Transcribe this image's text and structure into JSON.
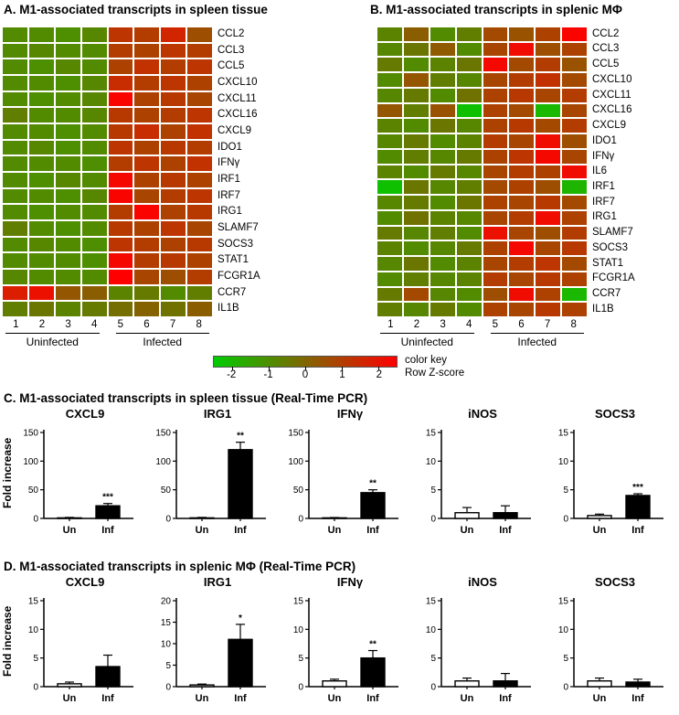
{
  "color_key": {
    "ticks": [
      "-2",
      "-1",
      "0",
      "1",
      "2"
    ],
    "zmin": -2.5,
    "zmax": 2.5,
    "label_line1": "color key",
    "label_line2": "Row Z-score",
    "negative_color": "#00cc00",
    "positive_color": "#ff0000",
    "gradient_stops": [
      "#00cc00",
      "#409900",
      "#806600",
      "#bf3300",
      "#ff0000"
    ]
  },
  "bar_style": {
    "fills": [
      "#ffffff",
      "#000000"
    ],
    "stroke": "#000000"
  },
  "chart_data": [
    {
      "id": "heatmap_spleen_tissue",
      "type": "heatmap",
      "title": "A. M1-associated transcripts in spleen tissue",
      "genes": [
        "CCL2",
        "CCL3",
        "CCL5",
        "CXCL10",
        "CXCL11",
        "CXCL16",
        "CXCL9",
        "IDO1",
        "IFNγ",
        "IRF1",
        "IRF7",
        "IRG1",
        "SLAMF7",
        "SOCS3",
        "STAT1",
        "FCGR1A",
        "CCR7",
        "IL1B"
      ],
      "columns": [
        "1",
        "2",
        "3",
        "4",
        "5",
        "6",
        "7",
        "8"
      ],
      "groups": [
        {
          "label": "Uninfected",
          "columns": [
            1,
            4
          ]
        },
        {
          "label": "Infected",
          "columns": [
            5,
            8
          ]
        }
      ],
      "zmin": -2.5,
      "zmax": 2.5,
      "values": [
        [
          -0.9,
          -0.9,
          -1.0,
          -0.8,
          1.2,
          1.0,
          1.6,
          0.6
        ],
        [
          -0.9,
          -0.8,
          -0.9,
          -0.9,
          1.0,
          0.9,
          1.2,
          1.0
        ],
        [
          -0.9,
          -1.0,
          -0.8,
          -0.9,
          0.9,
          1.3,
          1.0,
          1.2
        ],
        [
          -0.9,
          -0.9,
          -1.0,
          -0.8,
          1.4,
          1.0,
          1.2,
          0.9
        ],
        [
          -0.9,
          -1.0,
          -0.9,
          -0.8,
          2.4,
          0.9,
          1.1,
          0.8
        ],
        [
          -0.6,
          -0.9,
          -0.9,
          -0.8,
          1.1,
          0.9,
          1.0,
          1.2
        ],
        [
          -0.9,
          -0.9,
          -1.0,
          -0.9,
          1.1,
          1.4,
          0.9,
          1.3
        ],
        [
          -0.9,
          -0.8,
          -1.0,
          -0.9,
          1.2,
          0.9,
          1.1,
          1.0
        ],
        [
          -0.9,
          -0.9,
          -0.9,
          -1.0,
          1.0,
          1.2,
          0.9,
          1.3
        ],
        [
          -0.9,
          -1.0,
          -0.8,
          -0.9,
          2.3,
          0.9,
          1.1,
          0.9
        ],
        [
          -0.9,
          -0.9,
          -1.0,
          -0.8,
          2.4,
          0.8,
          1.0,
          1.2
        ],
        [
          -0.9,
          -1.0,
          -0.9,
          -0.9,
          1.0,
          2.4,
          0.9,
          1.1
        ],
        [
          -0.6,
          -0.9,
          -1.0,
          -0.9,
          1.1,
          0.9,
          1.2,
          0.8
        ],
        [
          -0.9,
          -0.8,
          -0.9,
          -1.0,
          1.2,
          1.0,
          0.9,
          1.1
        ],
        [
          -0.9,
          -0.9,
          -0.9,
          -1.0,
          2.3,
          1.0,
          1.1,
          0.9
        ],
        [
          -0.8,
          -0.9,
          -0.9,
          -0.9,
          2.5,
          0.8,
          0.6,
          1.0
        ],
        [
          1.8,
          2.1,
          0.4,
          0.2,
          -0.7,
          -0.5,
          -0.9,
          -0.6
        ],
        [
          -0.6,
          -0.4,
          -0.7,
          -0.5,
          -0.2,
          0.1,
          -0.3,
          0.2
        ]
      ]
    },
    {
      "id": "heatmap_splenic_macrophages",
      "type": "heatmap",
      "title": "B. M1-associated transcripts in splenic MΦ",
      "genes": [
        "CCL2",
        "CCL3",
        "CCL5",
        "CXCL10",
        "CXCL11",
        "CXCL16",
        "CXCL9",
        "IDO1",
        "IFNγ",
        "IL6",
        "IRF1",
        "IRF7",
        "IRG1",
        "SLAMF7",
        "SOCS3",
        "STAT1",
        "FCGR1A",
        "CCR7",
        "IL1B"
      ],
      "columns": [
        "1",
        "2",
        "3",
        "4",
        "5",
        "6",
        "7",
        "8"
      ],
      "groups": [
        {
          "label": "Uninfected",
          "columns": [
            1,
            4
          ]
        },
        {
          "label": "Infected",
          "columns": [
            5,
            8
          ]
        }
      ],
      "zmin": -2.5,
      "zmax": 2.5,
      "values": [
        [
          -0.7,
          0.2,
          -0.9,
          -0.6,
          0.7,
          0.5,
          0.9,
          2.4
        ],
        [
          -0.8,
          -0.4,
          0.3,
          -0.9,
          0.8,
          2.2,
          0.6,
          0.9
        ],
        [
          -0.5,
          -0.9,
          -0.7,
          -0.4,
          2.3,
          0.7,
          1.0,
          0.5
        ],
        [
          -0.9,
          0.4,
          -0.6,
          -0.8,
          0.8,
          1.0,
          1.3,
          0.7
        ],
        [
          -0.8,
          -0.5,
          -0.9,
          -0.3,
          0.9,
          1.1,
          0.8,
          1.0
        ],
        [
          0.4,
          -0.6,
          0.5,
          -2.2,
          0.9,
          0.7,
          -2.0,
          0.8
        ],
        [
          -0.7,
          -0.9,
          -0.4,
          -0.8,
          0.9,
          1.1,
          0.7,
          1.0
        ],
        [
          -0.8,
          -0.5,
          -0.9,
          -0.7,
          1.0,
          0.8,
          2.2,
          0.6
        ],
        [
          -0.9,
          -0.6,
          -0.8,
          -0.5,
          0.9,
          1.2,
          2.3,
          0.8
        ],
        [
          -0.7,
          -0.9,
          -0.5,
          -0.8,
          0.8,
          1.0,
          0.9,
          2.2
        ],
        [
          -2.2,
          -0.4,
          -0.8,
          -0.6,
          0.7,
          0.9,
          0.6,
          -1.9
        ],
        [
          -0.8,
          -0.5,
          -0.9,
          -0.4,
          0.9,
          0.8,
          1.1,
          0.7
        ],
        [
          -0.9,
          -0.3,
          -0.7,
          -0.8,
          0.8,
          1.0,
          2.2,
          0.9
        ],
        [
          -0.5,
          -0.8,
          -0.6,
          -0.9,
          2.1,
          0.8,
          0.6,
          1.0
        ],
        [
          -0.7,
          -0.9,
          -0.8,
          -0.5,
          0.9,
          2.3,
          0.8,
          1.1
        ],
        [
          -0.8,
          -0.4,
          -0.9,
          -0.7,
          0.8,
          1.0,
          1.2,
          0.7
        ],
        [
          -0.9,
          -0.6,
          -0.8,
          -0.7,
          1.0,
          0.8,
          1.1,
          0.9
        ],
        [
          -0.5,
          0.7,
          -0.8,
          -0.9,
          0.6,
          2.2,
          0.9,
          -2.0
        ],
        [
          -0.6,
          -0.8,
          -0.5,
          -0.9,
          0.9,
          0.8,
          1.1,
          0.9
        ]
      ]
    },
    {
      "id": "pcr_spleen_tissue",
      "type": "bar",
      "title": "C. M1-associated transcripts in spleen tissue (Real-Time PCR)",
      "ylabel": "Fold increase",
      "categories": [
        "Un",
        "Inf"
      ],
      "charts": [
        {
          "title": "CXCL9",
          "values": [
            1,
            22
          ],
          "errors": [
            0.8,
            4
          ],
          "sig": "***",
          "ylim": [
            0,
            150
          ],
          "yticks": [
            0,
            50,
            100,
            150
          ]
        },
        {
          "title": "IRG1",
          "values": [
            1,
            120
          ],
          "errors": [
            0.8,
            13
          ],
          "sig": "**",
          "ylim": [
            0,
            150
          ],
          "yticks": [
            0,
            50,
            100,
            150
          ]
        },
        {
          "title": "IFNγ",
          "values": [
            1,
            45
          ],
          "errors": [
            0.6,
            5
          ],
          "sig": "**",
          "ylim": [
            0,
            150
          ],
          "yticks": [
            0,
            50,
            100,
            150
          ]
        },
        {
          "title": "iNOS",
          "values": [
            1,
            1
          ],
          "errors": [
            0.9,
            1.2
          ],
          "sig": null,
          "ylim": [
            0,
            15
          ],
          "yticks": [
            0,
            5,
            10,
            15
          ]
        },
        {
          "title": "SOCS3",
          "values": [
            0.5,
            4
          ],
          "errors": [
            0.25,
            0.3
          ],
          "sig": "***",
          "ylim": [
            0,
            15
          ],
          "yticks": [
            0,
            5,
            10,
            15
          ]
        }
      ]
    },
    {
      "id": "pcr_splenic_macrophages",
      "type": "bar",
      "title": "D. M1-associated transcripts in splenic MΦ (Real-Time PCR)",
      "ylabel": "Fold increase",
      "categories": [
        "Un",
        "Inf"
      ],
      "charts": [
        {
          "title": "CXCL9",
          "values": [
            0.5,
            3.5
          ],
          "errors": [
            0.3,
            2.0
          ],
          "sig": null,
          "ylim": [
            0,
            15
          ],
          "yticks": [
            0,
            5,
            10,
            15
          ]
        },
        {
          "title": "IRG1",
          "values": [
            0.4,
            11
          ],
          "errors": [
            0.2,
            3.5
          ],
          "sig": "*",
          "ylim": [
            0,
            20
          ],
          "yticks": [
            0,
            5,
            10,
            15,
            20
          ]
        },
        {
          "title": "IFNγ",
          "values": [
            1,
            5
          ],
          "errors": [
            0.3,
            1.3
          ],
          "sig": "**",
          "ylim": [
            0,
            15
          ],
          "yticks": [
            0,
            5,
            10,
            15
          ]
        },
        {
          "title": "iNOS",
          "values": [
            1,
            1
          ],
          "errors": [
            0.5,
            1.3
          ],
          "sig": null,
          "ylim": [
            0,
            15
          ],
          "yticks": [
            0,
            5,
            10,
            15
          ]
        },
        {
          "title": "SOCS3",
          "values": [
            1,
            0.8
          ],
          "errors": [
            0.5,
            0.5
          ],
          "sig": null,
          "ylim": [
            0,
            15
          ],
          "yticks": [
            0,
            5,
            10,
            15
          ]
        }
      ]
    }
  ]
}
